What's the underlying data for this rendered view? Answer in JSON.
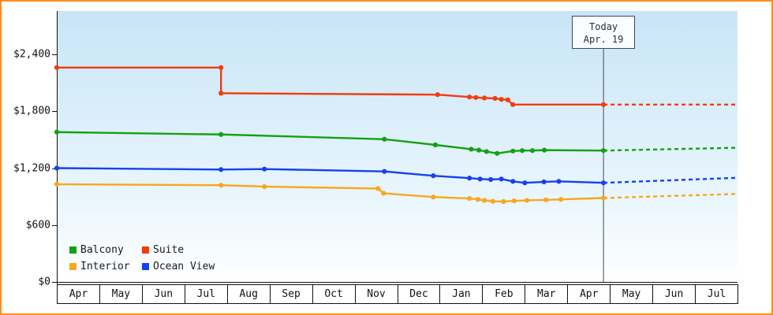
{
  "colors": {
    "frame_border": "#ff8c1a",
    "plot_bg_top": "#c8e5f6",
    "plot_bg_mid": "#eaf6fd",
    "plot_bg_bottom": "#ffffff",
    "axis": "#111111",
    "today_line": "#3a4a5a"
  },
  "chart_data": {
    "type": "line",
    "x_axis": {
      "unit": "month",
      "months": [
        "Apr",
        "May",
        "Jun",
        "Jul",
        "Aug",
        "Sep",
        "Oct",
        "Nov",
        "Dec",
        "Jan",
        "Feb",
        "Mar",
        "Apr",
        "May",
        "Jun",
        "Jul"
      ],
      "range_units": [
        0,
        16
      ]
    },
    "y_axis": {
      "tick_values": [
        0,
        600,
        1200,
        1800,
        2400
      ],
      "tick_labels": [
        "$0",
        "$600",
        "$1,200",
        "$1,800",
        "$2,400"
      ],
      "range": [
        0,
        2850
      ],
      "grid": false
    },
    "today_marker": {
      "x_units": 12.85,
      "label_line1": "Today",
      "label_line2": "Apr. 19"
    },
    "series": [
      {
        "name": "Balcony",
        "color": "#13a113",
        "points": [
          [
            0,
            1580
          ],
          [
            3.86,
            1555
          ],
          [
            7.7,
            1505
          ],
          [
            8.9,
            1445
          ],
          [
            9.74,
            1400
          ],
          [
            9.92,
            1390
          ],
          [
            10.1,
            1375
          ],
          [
            10.35,
            1355
          ],
          [
            10.72,
            1380
          ],
          [
            10.94,
            1385
          ],
          [
            11.18,
            1385
          ],
          [
            11.46,
            1390
          ],
          [
            12.85,
            1385
          ]
        ],
        "forecast": [
          [
            12.85,
            1385
          ],
          [
            16,
            1415
          ]
        ]
      },
      {
        "name": "Suite",
        "color": "#f13c0e",
        "points": [
          [
            0,
            2260
          ],
          [
            3.86,
            2260
          ],
          [
            3.86,
            1990
          ],
          [
            8.95,
            1975
          ],
          [
            9.7,
            1950
          ],
          [
            9.85,
            1945
          ],
          [
            10.05,
            1940
          ],
          [
            10.3,
            1935
          ],
          [
            10.45,
            1925
          ],
          [
            10.6,
            1920
          ],
          [
            10.72,
            1870
          ],
          [
            12.85,
            1870
          ]
        ],
        "forecast": [
          [
            12.85,
            1870
          ],
          [
            16,
            1870
          ]
        ]
      },
      {
        "name": "Interior",
        "color": "#f7a71f",
        "points": [
          [
            0,
            1030
          ],
          [
            3.86,
            1020
          ],
          [
            4.88,
            1005
          ],
          [
            7.55,
            985
          ],
          [
            7.68,
            935
          ],
          [
            8.85,
            895
          ],
          [
            9.7,
            880
          ],
          [
            9.9,
            870
          ],
          [
            10.05,
            860
          ],
          [
            10.25,
            850
          ],
          [
            10.5,
            848
          ],
          [
            10.75,
            855
          ],
          [
            11.05,
            860
          ],
          [
            11.5,
            865
          ],
          [
            11.85,
            870
          ],
          [
            12.85,
            885
          ]
        ],
        "forecast": [
          [
            12.85,
            885
          ],
          [
            16,
            928
          ]
        ]
      },
      {
        "name": "Ocean View",
        "color": "#1641f0",
        "points": [
          [
            0,
            1200
          ],
          [
            3.86,
            1185
          ],
          [
            4.88,
            1190
          ],
          [
            7.7,
            1165
          ],
          [
            8.85,
            1120
          ],
          [
            9.7,
            1095
          ],
          [
            9.95,
            1085
          ],
          [
            10.2,
            1080
          ],
          [
            10.45,
            1085
          ],
          [
            10.72,
            1060
          ],
          [
            11.0,
            1045
          ],
          [
            11.45,
            1055
          ],
          [
            11.8,
            1060
          ],
          [
            12.85,
            1045
          ]
        ],
        "forecast": [
          [
            12.85,
            1045
          ],
          [
            16,
            1098
          ]
        ]
      }
    ],
    "legend": {
      "position": "bottom-left",
      "items": [
        {
          "label": "Balcony",
          "color": "#13a113"
        },
        {
          "label": "Suite",
          "color": "#f13c0e"
        },
        {
          "label": "Interior",
          "color": "#f7a71f"
        },
        {
          "label": "Ocean View",
          "color": "#1641f0"
        }
      ]
    }
  }
}
